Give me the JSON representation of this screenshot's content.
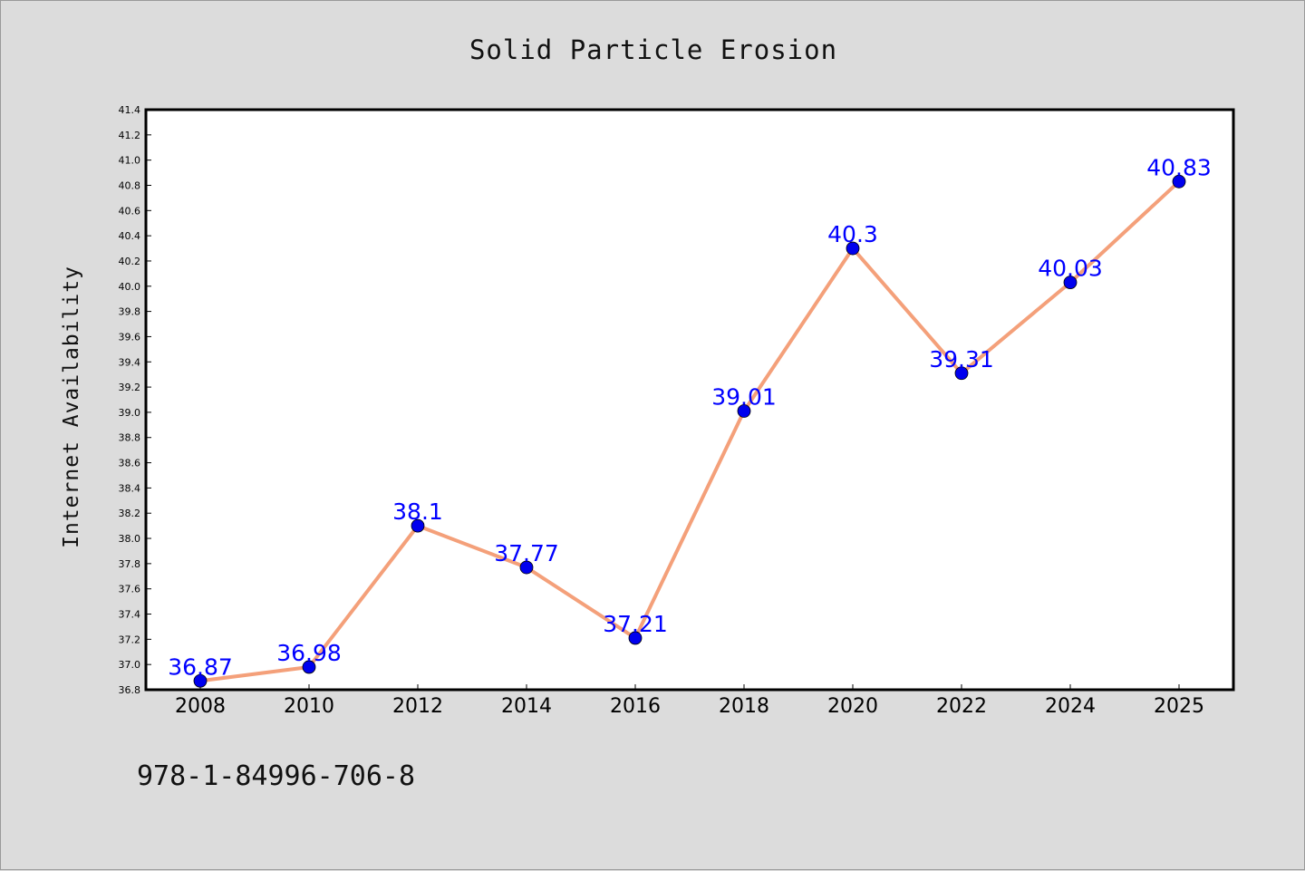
{
  "chart_data": {
    "type": "line",
    "title": "Solid Particle Erosion",
    "xlabel": "",
    "ylabel": "Internet Availability",
    "categories": [
      "2008",
      "2010",
      "2012",
      "2014",
      "2016",
      "2018",
      "2020",
      "2022",
      "2024",
      "2025"
    ],
    "series": [
      {
        "values": [
          36.87,
          36.98,
          38.1,
          37.77,
          37.21,
          39.01,
          40.3,
          39.31,
          40.03,
          40.83
        ],
        "value_labels": [
          "36.87",
          "36.98",
          "38.1",
          "37.77",
          "37.21",
          "39.01",
          "40.3",
          "39.31",
          "40.03",
          "40.83"
        ]
      }
    ],
    "ylim": [
      36.8,
      41.4
    ],
    "yticks": [
      "36.8",
      "37.0",
      "37.2",
      "37.4",
      "37.6",
      "37.8",
      "38.0",
      "38.2",
      "38.4",
      "38.6",
      "38.8",
      "39.0",
      "39.2",
      "39.4",
      "39.6",
      "39.8",
      "40.0",
      "40.2",
      "40.4",
      "40.6",
      "40.8",
      "41.0",
      "41.2",
      "41.4"
    ],
    "grid": false,
    "legend": "none",
    "colors": {
      "line": "#f4a07a",
      "marker": "#0000ee",
      "data_label": "#0000ff",
      "background": "#dcdcdc",
      "plot_background": "#ffffff"
    }
  },
  "footer": {
    "text": "978-1-84996-706-8"
  }
}
